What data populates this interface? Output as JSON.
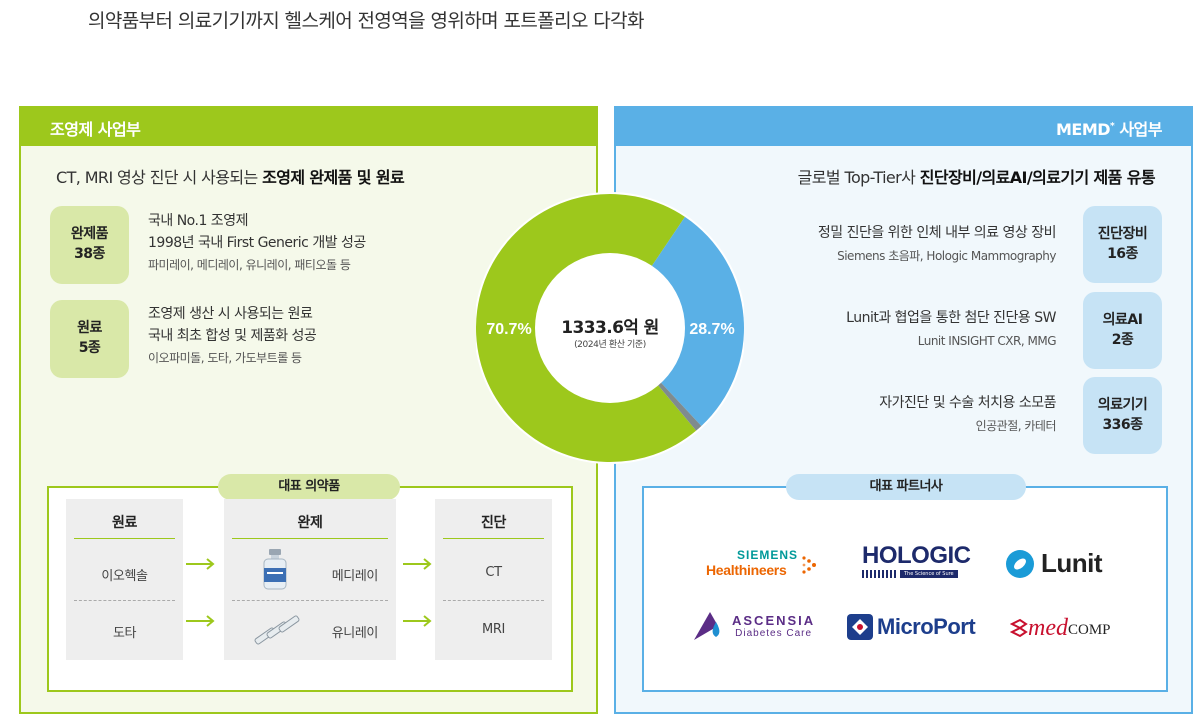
{
  "headline": "의약품부터 의료기기까지 헬스케어 전영역을 영위하며 포트폴리오 다각화",
  "left": {
    "title": "조영제 사업부",
    "subtitle_plain": "CT, MRI 영상 진단 시 사용되는 ",
    "subtitle_bold": "조영제 완제품 및 원료",
    "items": [
      {
        "badge_line1": "완제품",
        "badge_line2": "38종",
        "line1": "국내 No.1 조영제",
        "line2": "1998년 국내 First Generic 개발 성공",
        "line3": "파미레이, 메디레이, 유니레이, 패티오돌 등"
      },
      {
        "badge_line1": "원료",
        "badge_line2": "5종",
        "line1": "조영제 생산 시 사용되는 원료",
        "line2": "국내 최초 합성 및 제품화 성공",
        "line3": "이오파미돌, 도타, 가도부트롤 등"
      }
    ],
    "box_title": "대표 의약품",
    "columns": {
      "raw": {
        "header": "원료",
        "row1": "이오헥솔",
        "row2": "도타"
      },
      "finished": {
        "header": "완제",
        "row1": "메디레이",
        "row2": "유니레이"
      },
      "diagnosis": {
        "header": "진단",
        "row1": "CT",
        "row2": "MRI"
      }
    }
  },
  "donut": {
    "center_value": "1333.6억 원",
    "center_note": "(2024년 환산 기준)",
    "left_label": "70.7%",
    "right_label": "28.7%",
    "colors": {
      "green": "#9dc81c",
      "blue": "#5ab0e6",
      "gray": "#7f8b8e"
    }
  },
  "right": {
    "title_main": "MEMD",
    "title_sup": "*",
    "title_tail": " 사업부",
    "subtitle_plain": "글로벌 Top-Tier사 ",
    "subtitle_bold": "진단장비/의료AI/의료기기 제품 유통",
    "items": [
      {
        "badge_line1": "진단장비",
        "badge_line2": "16종",
        "line1": "정밀 진단을 위한 인체 내부 의료 영상 장비",
        "line2": "Siemens 초음파, Hologic Mammography"
      },
      {
        "badge_line1": "의료AI",
        "badge_line2": "2종",
        "line1": "Lunit과 협업을 통한 첨단 진단용 SW",
        "line2": "Lunit INSIGHT CXR, MMG"
      },
      {
        "badge_line1": "의료기기",
        "badge_line2": "336종",
        "line1": "자가진단 및 수술 처치용 소모품",
        "line2": "인공관절, 카테터"
      }
    ],
    "box_title": "대표 파트너사",
    "logos": {
      "siemens_top": "SIEMENS",
      "siemens_bottom": "Healthineers",
      "hologic": "HOLOGIC",
      "hologic_tag": "The Science of Sure",
      "lunit": "Lunit",
      "ascensia_top": "ASCENSIA",
      "ascensia_bottom": "Diabetes Care",
      "microport": "MicroPort",
      "medcomp_a": "med",
      "medcomp_b": "COMP"
    }
  }
}
